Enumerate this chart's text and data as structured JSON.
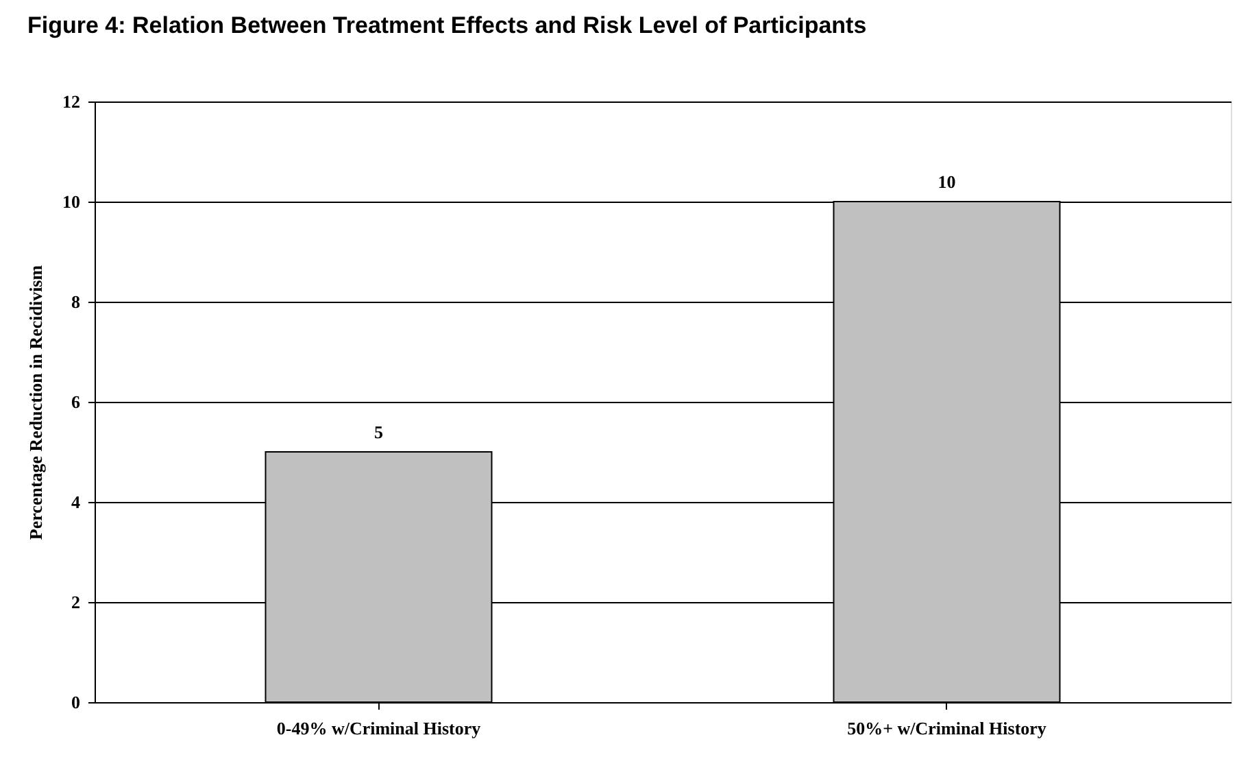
{
  "chart_data": {
    "type": "bar",
    "title": "Figure 4: Relation Between Treatment Effects and Risk Level of Participants",
    "ylabel": "Percentage Reduction in Recidivism",
    "categories": [
      "0-49% w/Criminal History",
      "50%+ w/Criminal History"
    ],
    "values": [
      5,
      10
    ],
    "color": "#c0c0c0",
    "ylim": [
      0,
      12
    ],
    "yticks": [
      0,
      2,
      4,
      6,
      8,
      10,
      12
    ],
    "grid": "y",
    "data_labels": true
  }
}
